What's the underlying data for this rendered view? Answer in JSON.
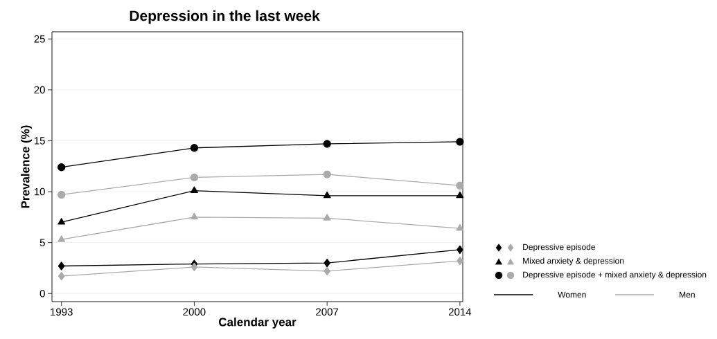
{
  "chart_data": {
    "type": "line",
    "title": "Depression in the last week",
    "xlabel": "Calendar year",
    "ylabel": "Prevalence (%)",
    "x": [
      1993,
      2000,
      2007,
      2014
    ],
    "series": [
      {
        "color": "#000000",
        "marker": "diamond",
        "values": [
          2.7,
          2.9,
          3.0,
          4.3
        ]
      },
      {
        "color": "#aaaaaa",
        "marker": "diamond",
        "values": [
          1.7,
          2.6,
          2.2,
          3.2
        ]
      },
      {
        "color": "#000000",
        "marker": "triangle",
        "values": [
          7.0,
          10.1,
          9.6,
          9.6
        ]
      },
      {
        "color": "#aaaaaa",
        "marker": "triangle",
        "values": [
          5.3,
          7.5,
          7.4,
          6.4
        ]
      },
      {
        "color": "#000000",
        "marker": "circle",
        "values": [
          12.4,
          14.3,
          14.7,
          14.9
        ]
      },
      {
        "color": "#aaaaaa",
        "marker": "circle",
        "values": [
          9.7,
          11.4,
          11.7,
          10.6
        ]
      }
    ],
    "annotations": [
      "Depressive episode",
      "Mixed anxiety & depression",
      "Depressive episode + mixed anxiety & depression",
      "Women",
      "Men"
    ],
    "xlim": [
      1992.5,
      2014.15
    ],
    "ylim": [
      -0.8,
      25.7
    ],
    "xticks": [
      1993,
      2000,
      2007,
      2014
    ],
    "yticks": [
      0,
      5,
      10,
      15,
      20,
      25
    ],
    "grid": "y",
    "line_style": "solid"
  }
}
